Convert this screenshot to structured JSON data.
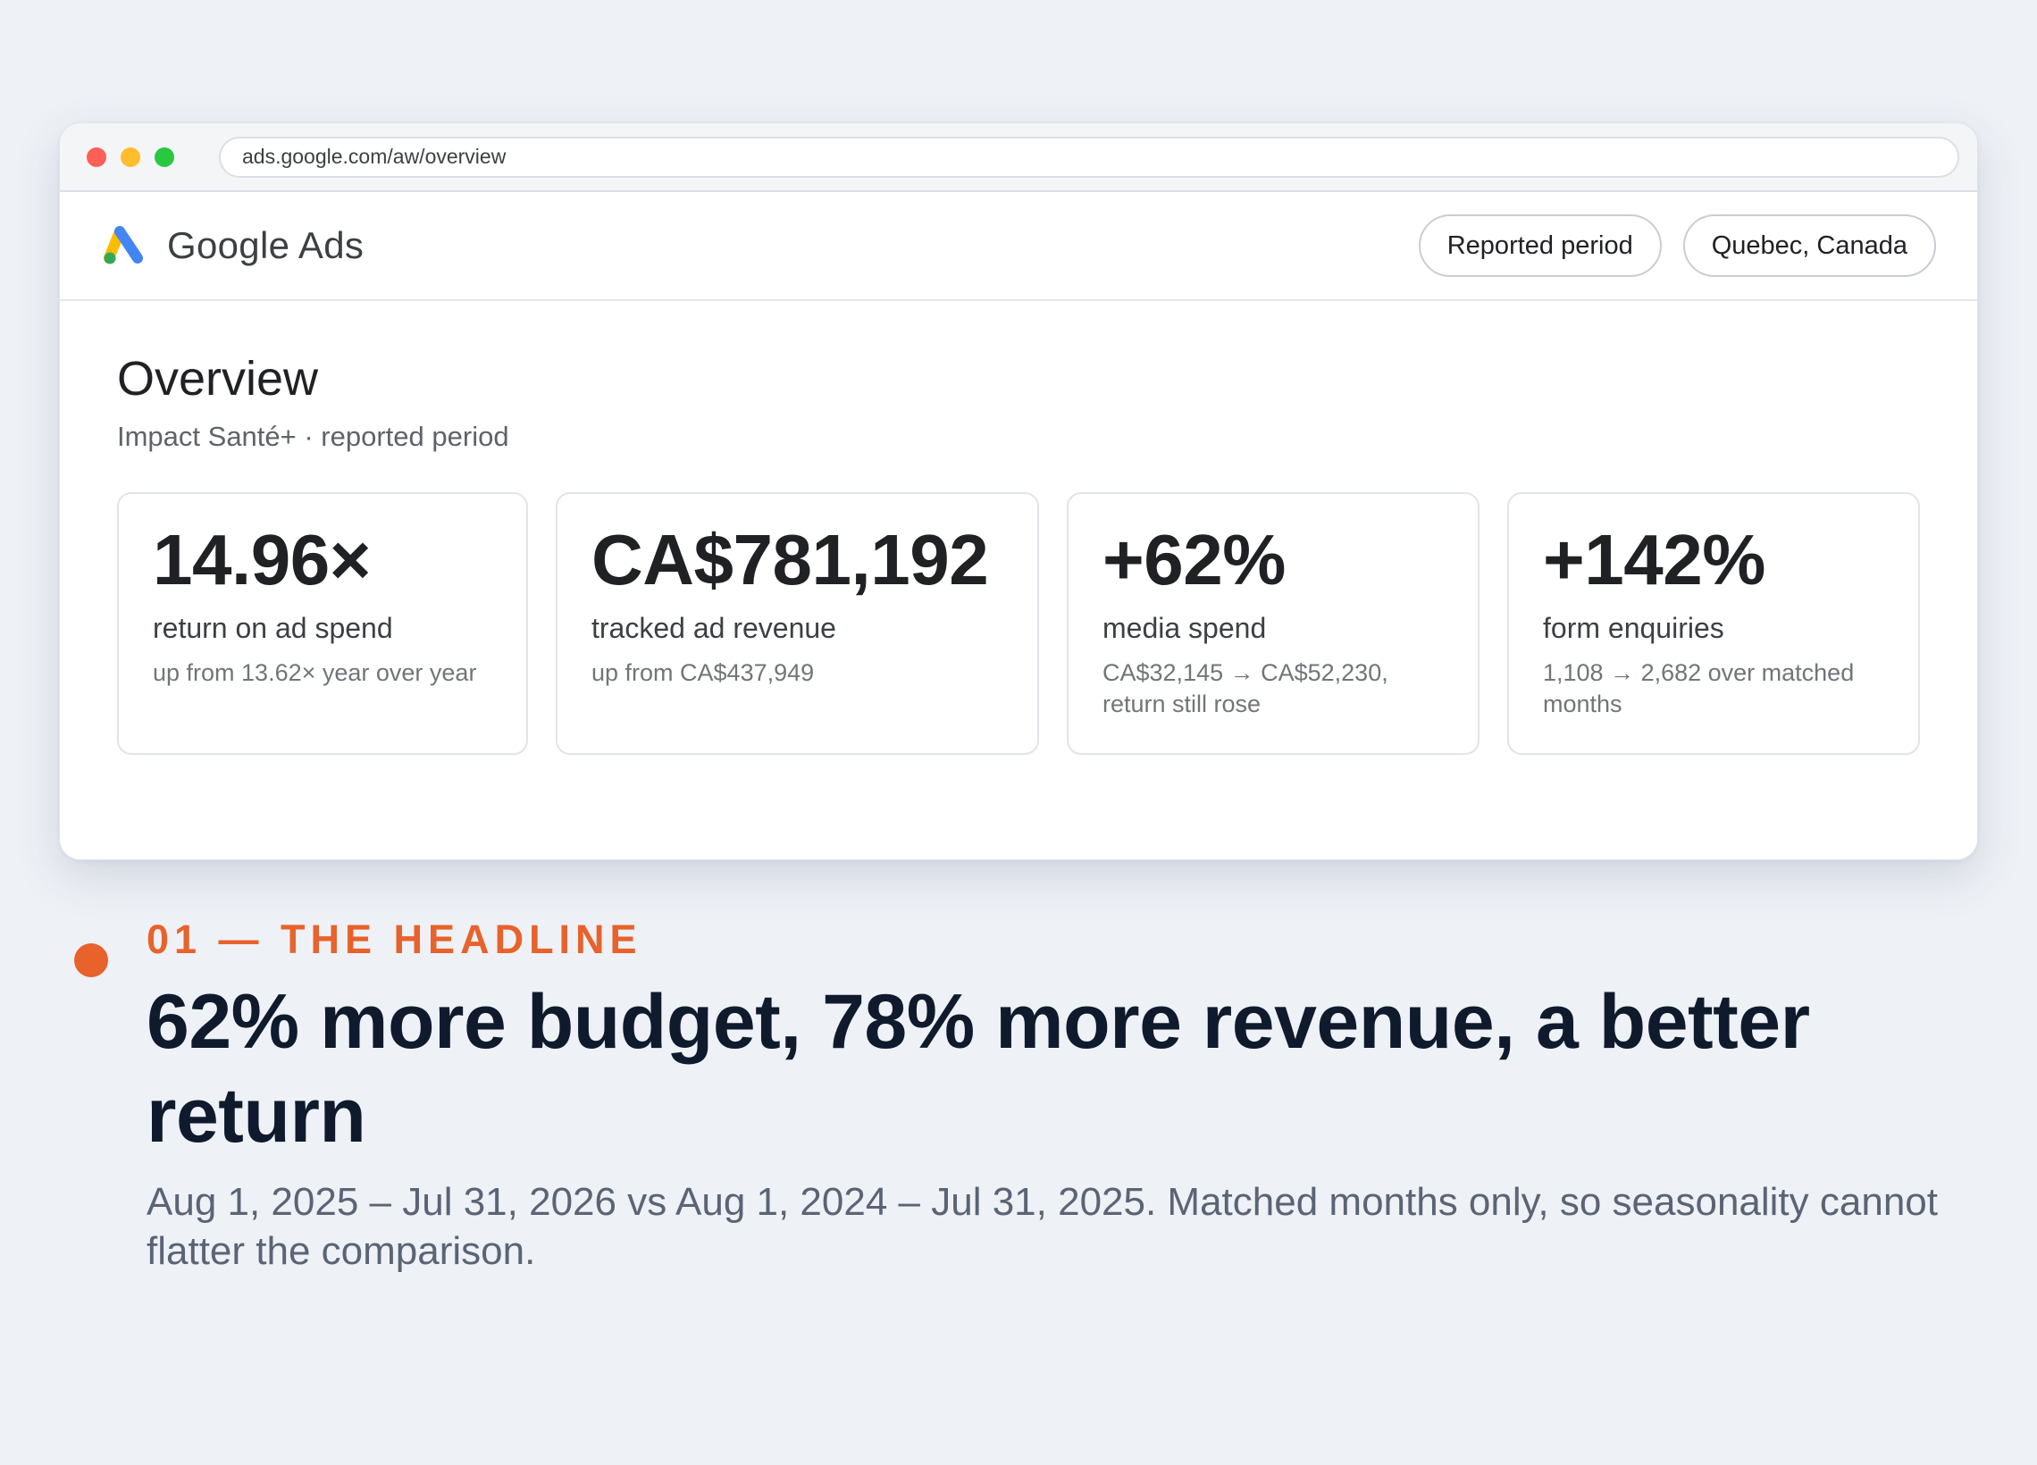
{
  "browser": {
    "url": "ads.google.com/aw/overview"
  },
  "app": {
    "brand": "Google Ads",
    "logo_icon": "google-ads-logo",
    "filters": [
      "Reported period",
      "Quebec, Canada"
    ]
  },
  "overview": {
    "title": "Overview",
    "subtitle": "Impact Santé+ · reported period",
    "cards": [
      {
        "value": "14.96×",
        "label": "return on ad spend",
        "note": "up from 13.62× year over year"
      },
      {
        "value": "CA$781,192",
        "label": "tracked ad revenue",
        "note": "up from CA$437,949"
      },
      {
        "value": "+62%",
        "label": "media spend",
        "note": "CA$32,145 → CA$52,230, return still rose"
      },
      {
        "value": "+142%",
        "label": "form enquiries",
        "note": "1,108 → 2,682 over matched months"
      }
    ]
  },
  "section": {
    "kicker": "01 — THE HEADLINE",
    "headline": "62% more budget, 78% more revenue, a better return",
    "subtext": "Aug 1, 2025 – Jul 31, 2026 vs Aug 1, 2024 – Jul 31, 2025. Matched months only, so seasonality cannot flatter the comparison.",
    "accent": "#e8622c"
  }
}
